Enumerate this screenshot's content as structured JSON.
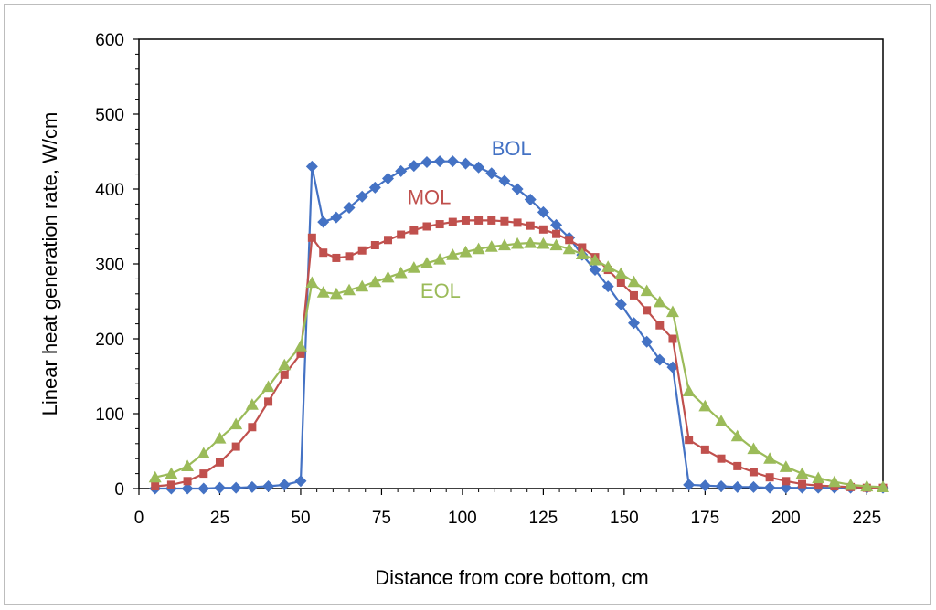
{
  "chart_data": {
    "type": "line",
    "title": "",
    "xlabel": "Distance from core bottom, cm",
    "ylabel": "Linear heat generation rate, W/cm",
    "xlim": [
      0,
      230
    ],
    "ylim": [
      0,
      600
    ],
    "x_ticks": [
      "0",
      "25",
      "50",
      "75",
      "100",
      "125",
      "150",
      "175",
      "200",
      "225"
    ],
    "y_ticks": [
      "0",
      "100",
      "200",
      "300",
      "400",
      "500",
      "600"
    ],
    "grid": false,
    "series": [
      {
        "name": "BOL",
        "color": "#4472c4",
        "marker": "diamond",
        "x": [
          5,
          10,
          15,
          20,
          25,
          30,
          35,
          40,
          45,
          50,
          53.5,
          57,
          61,
          65,
          69,
          73,
          77,
          81,
          85,
          89,
          93,
          97,
          101,
          105,
          109,
          113,
          117,
          121,
          125,
          129,
          133,
          137,
          141,
          145,
          149,
          153,
          157,
          161,
          165,
          170,
          175,
          180,
          185,
          190,
          195,
          200,
          205,
          210,
          215,
          220,
          225,
          230
        ],
        "values": [
          0,
          0,
          0,
          0,
          1,
          1,
          2,
          3,
          5,
          10,
          430,
          356,
          362,
          375,
          390,
          402,
          414,
          424,
          431,
          436,
          437,
          437,
          434,
          429,
          421,
          411,
          400,
          386,
          369,
          352,
          335,
          312,
          292,
          270,
          246,
          221,
          196,
          172,
          162,
          5,
          4,
          3,
          2,
          2,
          1,
          1,
          1,
          1,
          1,
          1,
          1,
          1
        ]
      },
      {
        "name": "MOL",
        "color": "#c0504d",
        "marker": "square",
        "x": [
          5,
          10,
          15,
          20,
          25,
          30,
          35,
          40,
          45,
          50,
          53.5,
          57,
          61,
          65,
          69,
          73,
          77,
          81,
          85,
          89,
          93,
          97,
          101,
          105,
          109,
          113,
          117,
          121,
          125,
          129,
          133,
          137,
          141,
          145,
          149,
          153,
          157,
          161,
          165,
          170,
          175,
          180,
          185,
          190,
          195,
          200,
          205,
          210,
          215,
          220,
          225,
          230
        ],
        "values": [
          3,
          5,
          10,
          20,
          35,
          56,
          82,
          116,
          152,
          180,
          335,
          315,
          308,
          310,
          318,
          325,
          332,
          339,
          345,
          350,
          353,
          356,
          358,
          358,
          358,
          357,
          355,
          351,
          346,
          340,
          332,
          322,
          309,
          292,
          275,
          258,
          238,
          218,
          200,
          65,
          52,
          40,
          30,
          22,
          15,
          10,
          6,
          4,
          3,
          2,
          1,
          1
        ]
      },
      {
        "name": "EOL",
        "color": "#9bbb59",
        "marker": "triangle",
        "x": [
          5,
          10,
          15,
          20,
          25,
          30,
          35,
          40,
          45,
          50,
          53.5,
          57,
          61,
          65,
          69,
          73,
          77,
          81,
          85,
          89,
          93,
          97,
          101,
          105,
          109,
          113,
          117,
          121,
          125,
          129,
          133,
          137,
          141,
          145,
          149,
          153,
          157,
          161,
          165,
          170,
          175,
          180,
          185,
          190,
          195,
          200,
          205,
          210,
          215,
          220,
          225,
          230
        ],
        "values": [
          15,
          20,
          30,
          47,
          67,
          86,
          112,
          136,
          165,
          190,
          275,
          262,
          260,
          265,
          270,
          276,
          282,
          288,
          295,
          301,
          306,
          312,
          316,
          320,
          323,
          325,
          327,
          328,
          327,
          325,
          320,
          313,
          305,
          296,
          287,
          276,
          264,
          249,
          236,
          130,
          110,
          90,
          70,
          53,
          40,
          29,
          20,
          14,
          9,
          5,
          3,
          2
        ]
      }
    ],
    "annotations": [
      {
        "text": "BOL",
        "series": "BOL",
        "x": 109,
        "y": 445
      },
      {
        "text": "MOL",
        "series": "MOL",
        "x": 83,
        "y": 380
      },
      {
        "text": "EOL",
        "series": "EOL",
        "x": 87,
        "y": 255
      }
    ]
  }
}
